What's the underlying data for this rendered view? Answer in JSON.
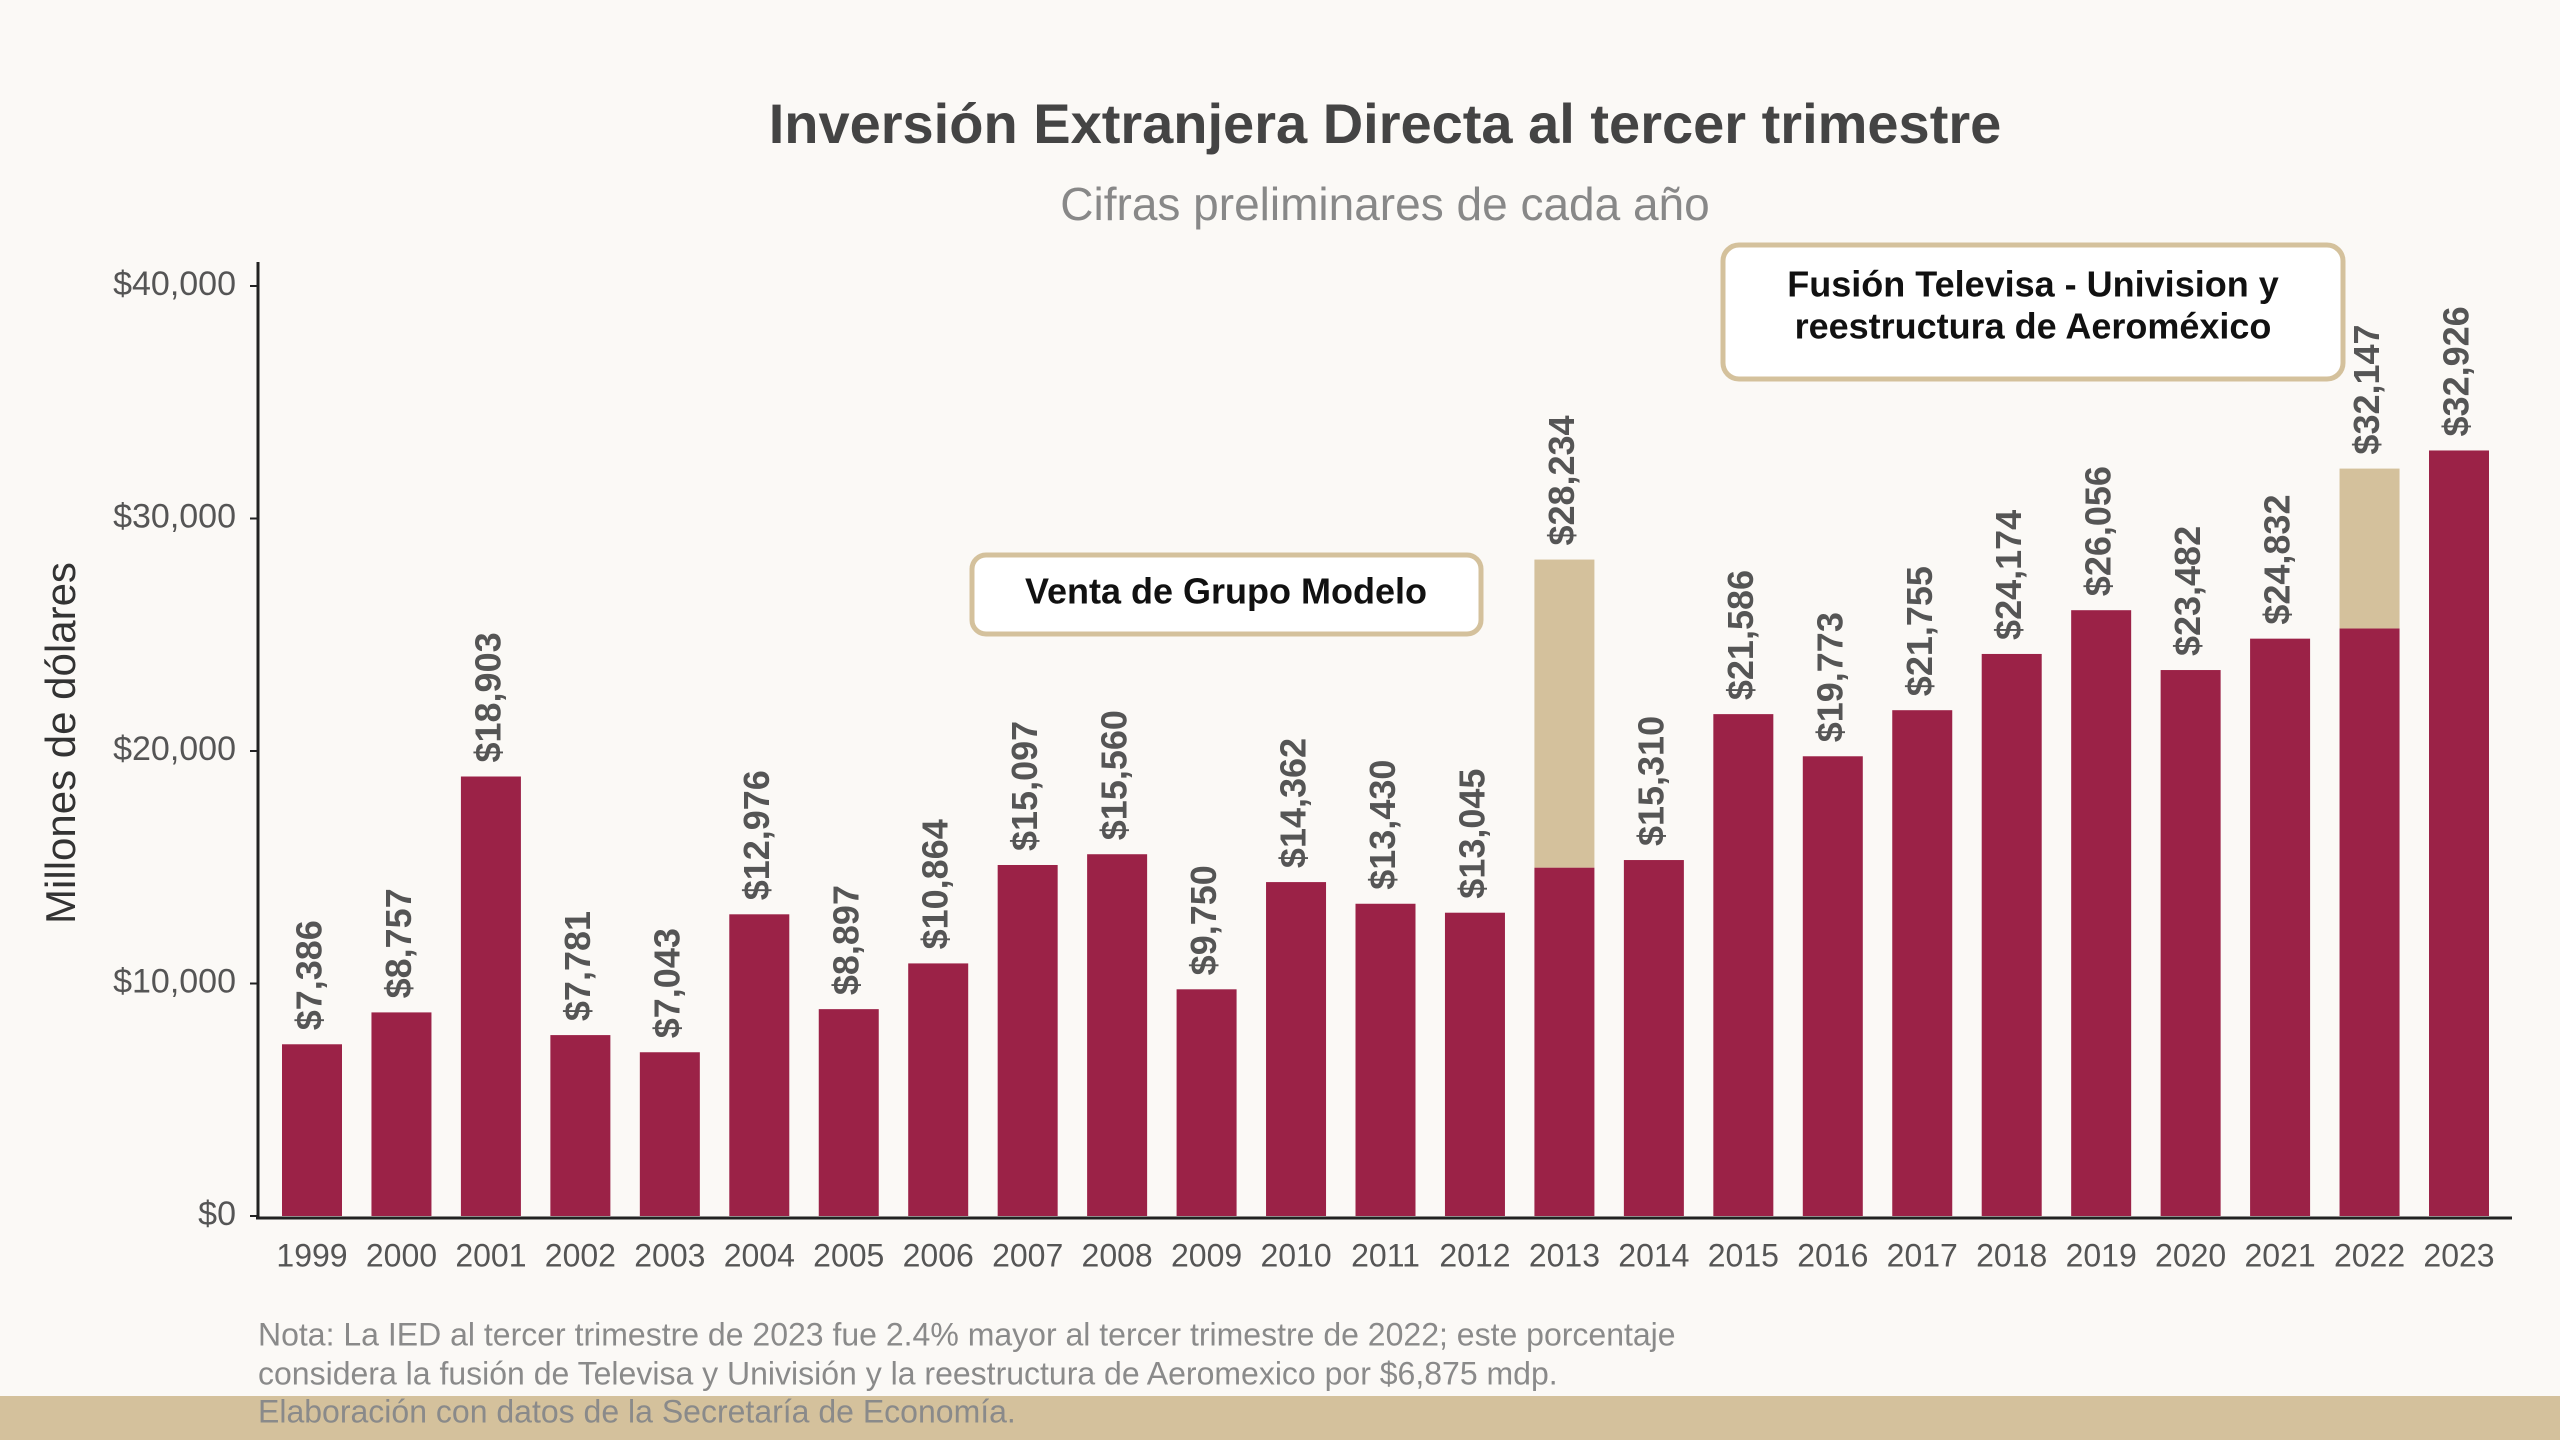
{
  "chart_data": {
    "type": "bar",
    "title": "Inversión Extranjera Directa al tercer trimestre",
    "subtitle": "Cifras preliminares de cada año",
    "y_label": "Millones de dólares",
    "categories": [
      "1999",
      "2000",
      "2001",
      "2002",
      "2003",
      "2004",
      "2005",
      "2006",
      "2007",
      "2008",
      "2009",
      "2010",
      "2011",
      "2012",
      "2013",
      "2014",
      "2015",
      "2016",
      "2017",
      "2018",
      "2019",
      "2020",
      "2021",
      "2022",
      "2023"
    ],
    "series": [
      {
        "color": "#9b2247",
        "values": [
          7386,
          8757,
          18903,
          7781,
          7043,
          12976,
          8897,
          10864,
          15097,
          15560,
          9750,
          14362,
          13430,
          13045,
          14984,
          15310,
          21586,
          19773,
          21755,
          24174,
          26056,
          23482,
          24832,
          25272,
          32926
        ]
      },
      {
        "color": "#d4c19c",
        "values": [
          null,
          null,
          null,
          null,
          null,
          null,
          null,
          null,
          null,
          null,
          null,
          null,
          null,
          null,
          13250,
          null,
          null,
          null,
          null,
          null,
          null,
          null,
          null,
          6875,
          null
        ]
      }
    ],
    "totals": {
      "values": [
        7386,
        8757,
        18903,
        7781,
        7043,
        12976,
        8897,
        10864,
        15097,
        15560,
        9750,
        14362,
        13430,
        13045,
        28234,
        15310,
        21586,
        19773,
        21755,
        24174,
        26056,
        23482,
        24832,
        32147,
        32926
      ],
      "value_labels": [
        "$7,386",
        "$8,757",
        "$18,903",
        "$7,781",
        "$7,043",
        "$12,976",
        "$8,897",
        "$10,864",
        "$15,097",
        "$15,560",
        "$9,750",
        "$14,362",
        "$13,430",
        "$13,045",
        "$28,234",
        "$15,310",
        "$21,586",
        "$19,773",
        "$21,755",
        "$24,174",
        "$26,056",
        "$23,482",
        "$24,832",
        "$32,147",
        "$32,926"
      ]
    },
    "ylim": [
      0,
      40000
    ],
    "yticks": [
      {
        "value": 0,
        "label": "$0"
      },
      {
        "value": 10000,
        "label": "$10,000"
      },
      {
        "value": 20000,
        "label": "$20,000"
      },
      {
        "value": 30000,
        "label": "$30,000"
      },
      {
        "value": 40000,
        "label": "$40,000"
      }
    ],
    "annotations": [
      {
        "lines": [
          "Venta de Grupo Modelo"
        ]
      },
      {
        "lines": [
          "Fusión Televisa - Univision y",
          "reestructura de Aeroméxico"
        ]
      }
    ],
    "notes": [
      "Nota: La IED al tercer trimestre de 2023 fue 2.4% mayor al tercer trimestre de 2022; este porcentaje",
      "considera la fusión de Televisa y Univisión y la reestructura de Aeromexico por $6,875 mdp.",
      "Elaboración con datos de la Secretaría de Economía."
    ]
  }
}
